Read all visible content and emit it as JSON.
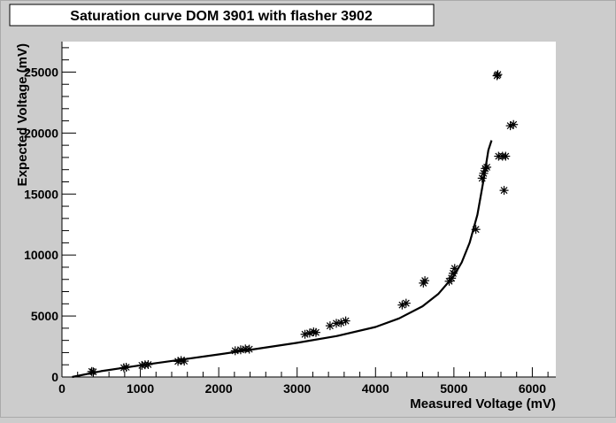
{
  "chart_data": {
    "type": "scatter",
    "title": "Saturation curve DOM 3901 with flasher 3902",
    "xlabel": "Measured Voltage (mV)",
    "ylabel": "Expected Voltage (mV)",
    "xlim": [
      0,
      6300
    ],
    "ylim": [
      0,
      27500
    ],
    "x_ticks": [
      0,
      1000,
      2000,
      3000,
      4000,
      5000,
      6000
    ],
    "y_ticks": [
      0,
      5000,
      10000,
      15000,
      20000,
      25000
    ],
    "x_tick_labels": [
      "0",
      "1000",
      "2000",
      "3000",
      "4000",
      "5000",
      "6000"
    ],
    "y_tick_labels": [
      "0",
      "5000",
      "10000",
      "15000",
      "20000",
      "25000"
    ],
    "grid": false,
    "series": [
      {
        "marker": "asterisk",
        "points": [
          [
            380,
            450
          ],
          [
            400,
            420
          ],
          [
            820,
            800
          ],
          [
            790,
            760
          ],
          [
            1020,
            950
          ],
          [
            1060,
            1000
          ],
          [
            1100,
            1020
          ],
          [
            1480,
            1280
          ],
          [
            1520,
            1350
          ],
          [
            1560,
            1300
          ],
          [
            2210,
            2150
          ],
          [
            2280,
            2230
          ],
          [
            2340,
            2300
          ],
          [
            2390,
            2280
          ],
          [
            3100,
            3500
          ],
          [
            3160,
            3600
          ],
          [
            3210,
            3700
          ],
          [
            3240,
            3650
          ],
          [
            3420,
            4200
          ],
          [
            3500,
            4400
          ],
          [
            3560,
            4450
          ],
          [
            3620,
            4600
          ],
          [
            4340,
            5900
          ],
          [
            4390,
            6050
          ],
          [
            4630,
            7900
          ],
          [
            4610,
            7700
          ],
          [
            4940,
            7850
          ],
          [
            4970,
            8100
          ],
          [
            4990,
            8500
          ],
          [
            5010,
            8900
          ],
          [
            5280,
            12100
          ],
          [
            5360,
            16300
          ],
          [
            5380,
            16700
          ],
          [
            5400,
            17100
          ],
          [
            5420,
            17200
          ],
          [
            5550,
            24700
          ],
          [
            5560,
            24800
          ],
          [
            5570,
            18100
          ],
          [
            5620,
            18100
          ],
          [
            5660,
            18100
          ],
          [
            5640,
            15300
          ],
          [
            5720,
            20600
          ],
          [
            5760,
            20700
          ]
        ]
      },
      {
        "type": "line",
        "points": [
          [
            130,
            0
          ],
          [
            500,
            480
          ],
          [
            1000,
            960
          ],
          [
            1500,
            1400
          ],
          [
            2000,
            1850
          ],
          [
            2500,
            2320
          ],
          [
            3000,
            2800
          ],
          [
            3500,
            3350
          ],
          [
            4000,
            4100
          ],
          [
            4300,
            4800
          ],
          [
            4600,
            5800
          ],
          [
            4800,
            6800
          ],
          [
            5000,
            8300
          ],
          [
            5100,
            9400
          ],
          [
            5200,
            11000
          ],
          [
            5300,
            13300
          ],
          [
            5380,
            16200
          ],
          [
            5440,
            18600
          ],
          [
            5480,
            19400
          ]
        ]
      }
    ]
  }
}
